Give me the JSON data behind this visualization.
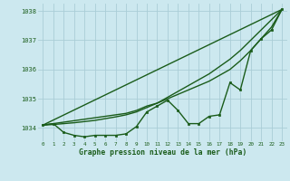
{
  "title": "Graphe pression niveau de la mer (hPa)",
  "background_color": "#cce8ef",
  "grid_color": "#aacdd6",
  "line_color": "#1a5c1a",
  "xlim": [
    -0.5,
    23.5
  ],
  "ylim": [
    1033.55,
    1038.25
  ],
  "yticks": [
    1034,
    1035,
    1036,
    1037,
    1038
  ],
  "xticks": [
    0,
    1,
    2,
    3,
    4,
    5,
    6,
    7,
    8,
    9,
    10,
    11,
    12,
    13,
    14,
    15,
    16,
    17,
    18,
    19,
    20,
    21,
    22,
    23
  ],
  "series": [
    {
      "x": [
        0,
        1,
        2,
        3,
        4,
        5,
        6,
        7,
        8,
        9,
        10,
        11,
        12,
        13,
        14,
        15,
        16,
        17,
        18,
        19,
        20,
        21,
        22,
        23
      ],
      "y": [
        1034.1,
        1034.15,
        1033.85,
        1033.75,
        1033.7,
        1033.75,
        1033.75,
        1033.75,
        1033.8,
        1034.05,
        1034.55,
        1034.75,
        1034.95,
        1034.6,
        1034.15,
        1034.15,
        1034.4,
        1034.45,
        1035.55,
        1035.3,
        1036.65,
        1037.05,
        1037.35,
        1038.05
      ],
      "has_marker": true,
      "linewidth": 1.0
    },
    {
      "x": [
        0,
        1,
        2,
        3,
        4,
        5,
        6,
        7,
        8,
        9,
        10,
        11,
        12,
        13,
        14,
        15,
        16,
        17,
        18,
        19,
        20,
        21,
        22,
        23
      ],
      "y": [
        1034.1,
        1034.15,
        1034.2,
        1034.25,
        1034.3,
        1034.35,
        1034.4,
        1034.45,
        1034.5,
        1034.6,
        1034.75,
        1034.85,
        1035.0,
        1035.15,
        1035.3,
        1035.45,
        1035.6,
        1035.8,
        1036.0,
        1036.3,
        1036.65,
        1037.05,
        1037.45,
        1038.05
      ],
      "has_marker": false,
      "linewidth": 1.0
    },
    {
      "x": [
        0,
        1,
        2,
        3,
        4,
        5,
        6,
        7,
        8,
        9,
        10,
        11,
        12,
        13,
        14,
        15,
        16,
        17,
        18,
        19,
        20,
        21,
        22,
        23
      ],
      "y": [
        1034.1,
        1034.12,
        1034.15,
        1034.18,
        1034.22,
        1034.26,
        1034.32,
        1034.38,
        1034.45,
        1034.55,
        1034.7,
        1034.85,
        1035.05,
        1035.25,
        1035.45,
        1035.65,
        1035.85,
        1036.1,
        1036.35,
        1036.65,
        1037.0,
        1037.35,
        1037.7,
        1038.05
      ],
      "has_marker": false,
      "linewidth": 1.0
    },
    {
      "x": [
        0,
        23
      ],
      "y": [
        1034.1,
        1038.05
      ],
      "has_marker": false,
      "linewidth": 1.0
    }
  ]
}
